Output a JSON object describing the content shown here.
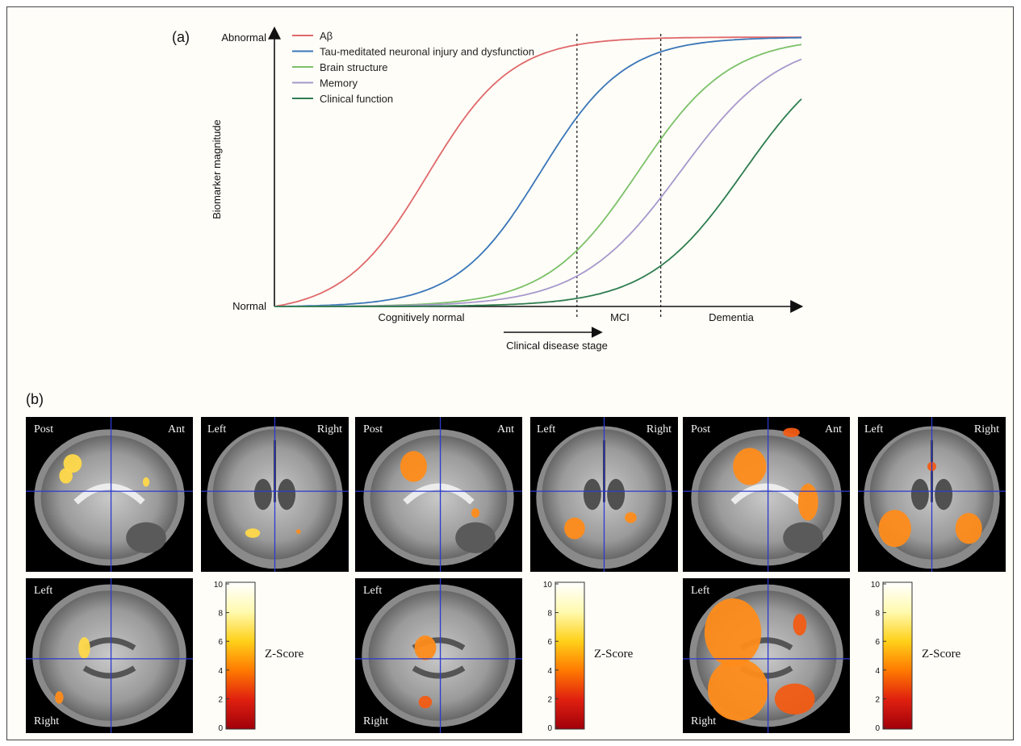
{
  "chart_data": {
    "type": "line",
    "panel_label": "(a)",
    "ylabel": "Biomarker magnitude",
    "y_ticks": {
      "top": "Abnormal",
      "bottom": "Normal"
    },
    "xlabel": "Clinical disease stage",
    "stages": [
      "Cognitively normal",
      "MCI",
      "Dementia"
    ],
    "x_range": [
      0,
      100
    ],
    "y_range": [
      0,
      1
    ],
    "stage_boundaries": [
      57.4,
      73.3
    ],
    "legend_position": "top-left",
    "grid": false,
    "series": [
      {
        "name": "Aβ",
        "color": "#e0686a",
        "midpoint": 29,
        "slope": 0.125
      },
      {
        "name": "Tau-meditated neuronal injury and dysfunction",
        "color": "#3a76b8",
        "midpoint": 50.5,
        "slope": 0.125
      },
      {
        "name": "Brain structure",
        "color": "#7cc168",
        "midpoint": 69,
        "slope": 0.115
      },
      {
        "name": "Memory",
        "color": "#a898cc",
        "midpoint": 77,
        "slope": 0.105
      },
      {
        "name": "Clinical function",
        "color": "#2e7d4f",
        "midpoint": 89,
        "slope": 0.11
      }
    ]
  },
  "panel_b": {
    "label": "(b)",
    "groups": [
      {
        "sagittal": {
          "left": "Post",
          "right": "Ant"
        },
        "coronal": {
          "left": "Left",
          "right": "Right"
        },
        "axial": {
          "top": "Left",
          "bottom": "Right"
        },
        "colorbar": {
          "ticks": [
            "10",
            "8",
            "6",
            "4",
            "2",
            "0"
          ],
          "label": "Z-Score"
        }
      },
      {
        "sagittal": {
          "left": "Post",
          "right": "Ant"
        },
        "coronal": {
          "left": "Left",
          "right": "Right"
        },
        "axial": {
          "top": "Left",
          "bottom": "Right"
        },
        "colorbar": {
          "ticks": [
            "10",
            "8",
            "6",
            "4",
            "2",
            "0"
          ],
          "label": "Z-Score"
        }
      },
      {
        "sagittal": {
          "left": "Post",
          "right": "Ant"
        },
        "coronal": {
          "left": "Left",
          "right": "Right"
        },
        "axial": {
          "top": "Left",
          "bottom": "Right"
        },
        "colorbar": {
          "ticks": [
            "10",
            "8",
            "6",
            "4",
            "2",
            "0"
          ],
          "label": "Z-Score"
        }
      }
    ]
  }
}
